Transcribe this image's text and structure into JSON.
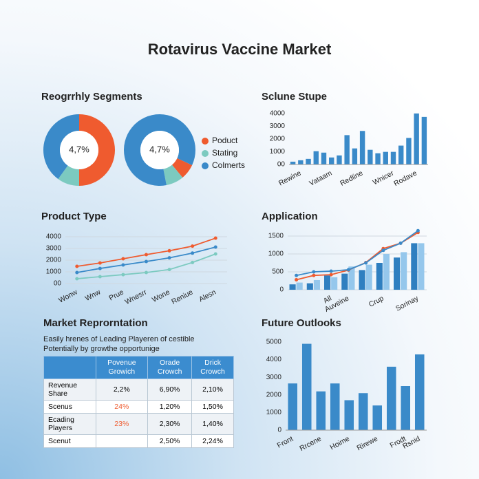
{
  "title": "Rotavirus Vaccine Market",
  "chart_data": [
    {
      "type": "donut",
      "title": "Reogrrhly Segments",
      "categories": [
        "Poduct",
        "Stating",
        "Colmerts"
      ],
      "colors": [
        "#ef5b2f",
        "#7ccac0",
        "#3a8ac9"
      ],
      "series": [
        {
          "center_label": "4,7%",
          "values": [
            50,
            10,
            40
          ]
        },
        {
          "center_label": "4,7%",
          "values": [
            7,
            8,
            85
          ]
        }
      ]
    },
    {
      "type": "bar",
      "title": "Sclune Stupe",
      "categories": [
        null,
        "Rewine",
        null,
        null,
        null,
        "Vataam",
        null,
        null,
        null,
        "Redline",
        null,
        null,
        null,
        "Wnicer",
        null,
        null,
        "Rodave",
        null
      ],
      "values": [
        220,
        330,
        440,
        1040,
        930,
        550,
        710,
        2300,
        1260,
        2630,
        1150,
        880,
        990,
        990,
        1480,
        2080,
        4000,
        3730
      ],
      "color": "#3a8ac9",
      "ylim": [
        0,
        4100
      ],
      "yticks": [
        {
          "value": 0,
          "label": "00"
        },
        1000,
        2000,
        3000,
        4000
      ],
      "grid": false
    },
    {
      "type": "line",
      "title": "Product Type",
      "categories": [
        "Wonw",
        "Wnw",
        "Prue",
        "Wnesrr",
        "Wone",
        "Reniue",
        "Alesn"
      ],
      "series": [
        {
          "color": "#ef5b2f",
          "values": [
            1470,
            1760,
            2120,
            2470,
            2800,
            3200,
            3880
          ]
        },
        {
          "color": "#3a8ac9",
          "values": [
            940,
            1290,
            1590,
            1880,
            2200,
            2600,
            3120
          ]
        },
        {
          "color": "#7ccac0",
          "values": [
            410,
            590,
            760,
            940,
            1200,
            1800,
            2530
          ]
        }
      ],
      "ylim": [
        0,
        4000
      ],
      "yticks": [
        {
          "value": 0,
          "label": "00"
        },
        1000,
        2000,
        3000,
        4000
      ],
      "grid": true
    },
    {
      "type": "combo",
      "title": "Application",
      "categories": [
        null,
        null,
        "All",
        "Auveine",
        null,
        "Crup",
        null,
        "Sorinay"
      ],
      "series": [
        {
          "type": "bar",
          "color": "#2f7fc0",
          "values": [
            150,
            180,
            400,
            450,
            550,
            750,
            900,
            1300
          ]
        },
        {
          "type": "bar",
          "color": "#95c7ec",
          "values": [
            200,
            270,
            350,
            650,
            700,
            1000,
            1050,
            1300
          ]
        },
        {
          "type": "line",
          "color": "#ef5b2f",
          "values": [
            280,
            400,
            420,
            550,
            760,
            1150,
            1300,
            1600
          ]
        },
        {
          "type": "line",
          "color": "#3a8ac9",
          "values": [
            400,
            500,
            520,
            560,
            750,
            1100,
            1300,
            1650
          ]
        }
      ],
      "ylim": [
        0,
        1500
      ],
      "yticks": [
        0,
        500,
        1000,
        1500
      ],
      "grid": true
    },
    {
      "type": "bar",
      "title": "Future Outlooks",
      "categories": [
        "Front",
        null,
        "Rrcene",
        null,
        "Hoime",
        null,
        "Rirewe",
        null,
        "Frodt",
        "Rsnid"
      ],
      "values": [
        2650,
        4900,
        2200,
        2650,
        1700,
        2100,
        1400,
        3600,
        2500,
        4300
      ],
      "color": "#3a8ac9",
      "ylim": [
        0,
        5000
      ],
      "yticks": [
        0,
        1000,
        2000,
        3000,
        4000,
        5000
      ],
      "grid": false
    }
  ],
  "market_representation": {
    "title": "Market Reprorntation",
    "subtitle": [
      "Easily hrenes of Leading Playeren of cestible",
      "Potentially by growthe opportunige"
    ],
    "header": [
      null,
      "Povenue Growich",
      "Orade Crowch",
      "Drick Crowch"
    ],
    "rows": [
      [
        "Revenue Share",
        "2,2%",
        "6,90%",
        "2,10%"
      ],
      [
        "Scenus",
        "24%",
        "1,20%",
        "1,50%"
      ],
      [
        "Ecading Players",
        "23%",
        "2,30%",
        "1,40%"
      ],
      [
        "Scenut",
        null,
        "2,50%",
        "2,24%"
      ]
    ],
    "highlight": [
      [
        1,
        1
      ],
      [
        2,
        1
      ]
    ]
  }
}
